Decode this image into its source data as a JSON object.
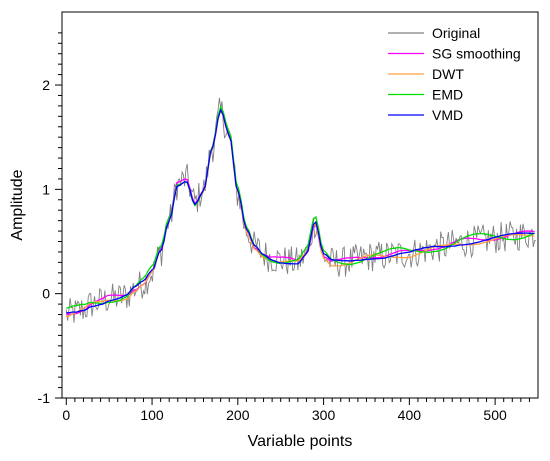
{
  "chart_data": {
    "type": "line",
    "xlabel": "Variable points",
    "ylabel": "Amplitude",
    "xlim": [
      -5,
      550
    ],
    "ylim": [
      -1,
      2.7
    ],
    "x_ticks": [
      0,
      100,
      200,
      300,
      400,
      500
    ],
    "y_ticks": [
      -1,
      0,
      1,
      2
    ],
    "grid": false,
    "legend_position": "top-right",
    "series": [
      {
        "name": "Original",
        "color": "#808080",
        "noisy": true
      },
      {
        "name": "SG smoothing",
        "color": "#ff00ff"
      },
      {
        "name": "DWT",
        "color": "#ffa040"
      },
      {
        "name": "EMD",
        "color": "#00dd00"
      },
      {
        "name": "VMD",
        "color": "#0000ff"
      }
    ],
    "x": [
      0,
      10,
      20,
      30,
      40,
      50,
      60,
      70,
      80,
      90,
      100,
      110,
      120,
      130,
      140,
      150,
      160,
      170,
      180,
      190,
      200,
      210,
      220,
      230,
      240,
      250,
      260,
      270,
      280,
      290,
      300,
      310,
      320,
      330,
      340,
      350,
      360,
      370,
      380,
      390,
      400,
      410,
      420,
      430,
      440,
      450,
      460,
      470,
      480,
      490,
      500,
      510,
      520,
      530,
      540,
      550
    ],
    "y": [
      -0.2,
      -0.18,
      -0.15,
      -0.1,
      -0.08,
      -0.05,
      -0.04,
      -0.02,
      0.05,
      0.1,
      0.2,
      0.4,
      0.7,
      1.05,
      1.1,
      0.88,
      1.0,
      1.4,
      1.75,
      1.5,
      0.95,
      0.6,
      0.45,
      0.38,
      0.34,
      0.32,
      0.31,
      0.3,
      0.38,
      0.68,
      0.36,
      0.3,
      0.3,
      0.31,
      0.33,
      0.35,
      0.36,
      0.36,
      0.37,
      0.38,
      0.38,
      0.4,
      0.42,
      0.44,
      0.45,
      0.47,
      0.49,
      0.5,
      0.51,
      0.52,
      0.53,
      0.54,
      0.55,
      0.56,
      0.57,
      0.58
    ]
  }
}
